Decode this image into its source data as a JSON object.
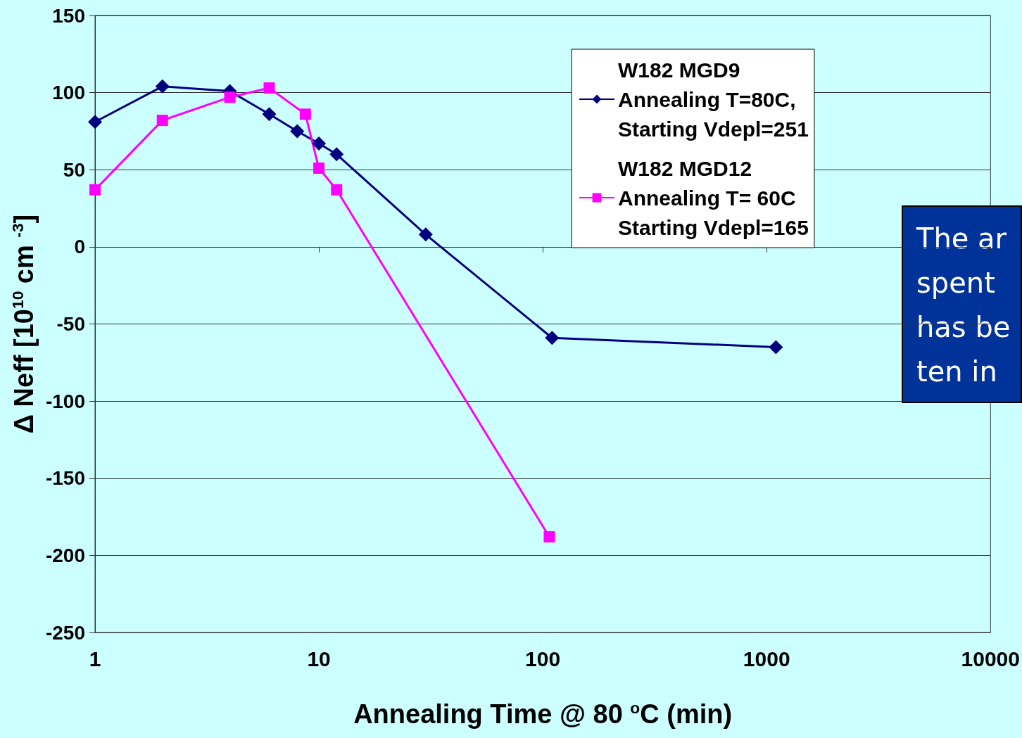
{
  "chart_data": {
    "type": "line",
    "xlabel": "Annealing Time @ 80 $^{o}$C (min)",
    "ylabel": "Δ Neff [10$^{10}$ cm $^{-3}$]",
    "log": "x",
    "xlim": [
      1,
      10000
    ],
    "xticks": [
      1,
      10,
      100,
      1000,
      10000
    ],
    "ylim": [
      -250,
      150
    ],
    "yticks": [
      -250,
      -200,
      -150,
      -100,
      -50,
      0,
      50,
      100,
      150
    ],
    "grid": "y",
    "legend": "top right",
    "series": [
      {
        "name": "W182 MGD9\nAnnealing T=80C,\nStarting Vdepl=251",
        "color": "#000080",
        "marker": "diamond",
        "x": [
          1,
          2,
          4,
          6,
          8,
          10,
          12,
          30,
          110,
          1100
        ],
        "values": [
          81,
          104,
          101,
          86,
          75,
          67,
          60,
          8,
          -59,
          -65
        ]
      },
      {
        "name": "W182 MGD12\nAnnealing T= 60C\nStarting Vdepl=165",
        "color": "#ff00ff",
        "marker": "square",
        "x": [
          1,
          2,
          4,
          6,
          8.7,
          10,
          12,
          107
        ],
        "values": [
          37,
          82,
          97,
          103,
          86,
          51,
          37,
          -188
        ]
      }
    ],
    "annotations": [
      "The ar\nspent\nhas be\nten in"
    ]
  }
}
